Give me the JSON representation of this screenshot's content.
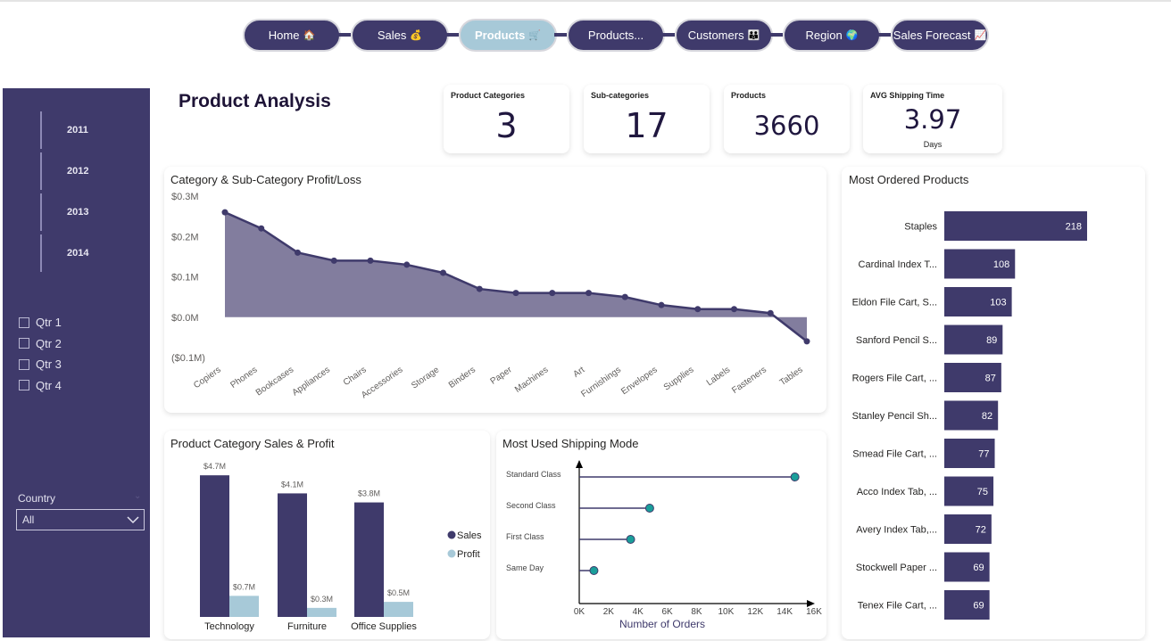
{
  "nav": [
    {
      "label": "Home",
      "emoji": "🏠",
      "active": false
    },
    {
      "label": "Sales",
      "emoji": "💰",
      "active": false
    },
    {
      "label": "Products",
      "emoji": "🛒",
      "active": true
    },
    {
      "label": "Products...",
      "emoji": "",
      "active": false
    },
    {
      "label": "Customers",
      "emoji": "👪",
      "active": false
    },
    {
      "label": "Region",
      "emoji": "🌍",
      "active": false
    },
    {
      "label": "Sales Forecast",
      "emoji": "📈",
      "active": false
    }
  ],
  "sidebar": {
    "years": [
      "2011",
      "2012",
      "2013",
      "2014"
    ],
    "quarters": [
      "Qtr 1",
      "Qtr 2",
      "Qtr 3",
      "Qtr 4"
    ],
    "country_label": "Country",
    "country_value": "All"
  },
  "page_title": "Product Analysis",
  "kpis": [
    {
      "label": "Product Categories",
      "value": "3",
      "sub": ""
    },
    {
      "label": "Sub-categories",
      "value": "17",
      "sub": ""
    },
    {
      "label": "Products",
      "value": "3660",
      "sub": ""
    },
    {
      "label": "AVG Shipping Time",
      "value": "3.97",
      "sub": "Days"
    }
  ],
  "colors": {
    "primary": "#3f3a6b",
    "accent": "#a7c9d8",
    "teal": "#1a9e9a"
  },
  "chart_data": [
    {
      "type": "area",
      "title": "Category & Sub-Category Profit/Loss",
      "categories": [
        "Copiers",
        "Phones",
        "Bookcases",
        "Appliances",
        "Chairs",
        "Accessories",
        "Storage",
        "Binders",
        "Paper",
        "Machines",
        "Art",
        "Furnishings",
        "Envelopes",
        "Supplies",
        "Labels",
        "Fasteners",
        "Tables"
      ],
      "values": [
        0.26,
        0.22,
        0.16,
        0.14,
        0.14,
        0.13,
        0.11,
        0.07,
        0.06,
        0.06,
        0.06,
        0.05,
        0.03,
        0.02,
        0.02,
        0.01,
        -0.06
      ],
      "unit": "$M",
      "yticks": [
        "$0.3M",
        "$0.2M",
        "$0.1M",
        "$0.0M",
        "($0.1M)"
      ],
      "ylim": [
        -0.1,
        0.3
      ]
    },
    {
      "type": "bar",
      "title": "Most Ordered Products",
      "categories": [
        "Staples",
        "Cardinal Index T...",
        "Eldon File Cart, S...",
        "Sanford Pencil S...",
        "Rogers File Cart, ...",
        "Stanley Pencil Sh...",
        "Smead File Cart, ...",
        "Acco Index Tab, ...",
        "Avery Index Tab,...",
        "Stockwell Paper ...",
        "Tenex File Cart, ..."
      ],
      "values": [
        218,
        108,
        103,
        89,
        87,
        82,
        77,
        75,
        72,
        69,
        69
      ]
    },
    {
      "type": "bar",
      "title": "Product Category Sales & Profit",
      "categories": [
        "Technology",
        "Furniture",
        "Office Supplies"
      ],
      "series": [
        {
          "name": "Sales",
          "values": [
            4.7,
            4.1,
            3.8
          ],
          "labels": [
            "$4.7M",
            "$4.1M",
            "$3.8M"
          ]
        },
        {
          "name": "Profit",
          "values": [
            0.7,
            0.3,
            0.5
          ],
          "labels": [
            "$0.7M",
            "$0.3M",
            "$0.5M"
          ]
        }
      ],
      "legend": "right"
    },
    {
      "type": "scatter",
      "title": "Most Used Shipping Mode",
      "categories": [
        "Standard Class",
        "Second Class",
        "First Class",
        "Same Day"
      ],
      "values": [
        14700,
        4800,
        3500,
        1000
      ],
      "xticks": [
        "0K",
        "2K",
        "4K",
        "6K",
        "8K",
        "10K",
        "12K",
        "14K",
        "16K"
      ],
      "xlim": [
        0,
        16000
      ],
      "xlabel": "Number of Orders"
    }
  ]
}
